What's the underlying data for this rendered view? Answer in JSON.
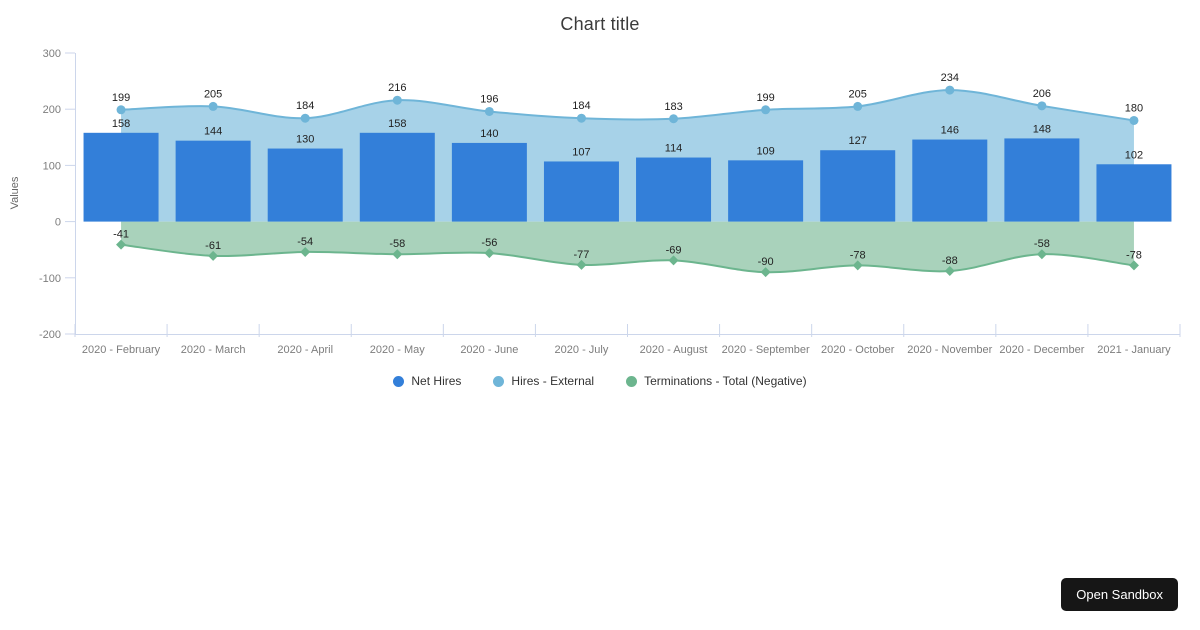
{
  "title": "Chart title",
  "chart_data": {
    "type": "combo",
    "categories": [
      "2020 - February",
      "2020 - March",
      "2020 - April",
      "2020 - May",
      "2020 - June",
      "2020 - July",
      "2020 - August",
      "2020 - September",
      "2020 - October",
      "2020 - November",
      "2020 - December",
      "2021 - January"
    ],
    "series": [
      {
        "name": "Net Hires",
        "type": "bar",
        "color": "#337fd9",
        "values": [
          158,
          144,
          130,
          158,
          140,
          107,
          114,
          109,
          127,
          146,
          148,
          102
        ]
      },
      {
        "name": "Hires - External",
        "type": "area",
        "color": "#6fb5d8",
        "fill": "#a7d2e8",
        "marker": "circle",
        "values": [
          199,
          205,
          184,
          216,
          196,
          184,
          183,
          199,
          205,
          234,
          206,
          180
        ]
      },
      {
        "name": "Terminations - Total (Negative)",
        "type": "area",
        "color": "#6cb58e",
        "fill": "#a9d2bb",
        "marker": "diamond",
        "values": [
          -41,
          -61,
          -54,
          -58,
          -56,
          -77,
          -69,
          -90,
          -78,
          -88,
          -58,
          -78
        ]
      }
    ],
    "xlabel": "",
    "ylabel": "Values",
    "ylim": [
      -200,
      300
    ],
    "yticks": [
      300,
      200,
      100,
      0,
      -100,
      -200
    ],
    "grid": false,
    "legend_position": "bottom"
  },
  "axis": {
    "line_color": "#ccd6eb",
    "tick_label_color": "#7d7d7d",
    "axis_title_color": "#666666"
  },
  "value_label_color": "#222222",
  "sandbox_button": {
    "label": "Open Sandbox"
  }
}
